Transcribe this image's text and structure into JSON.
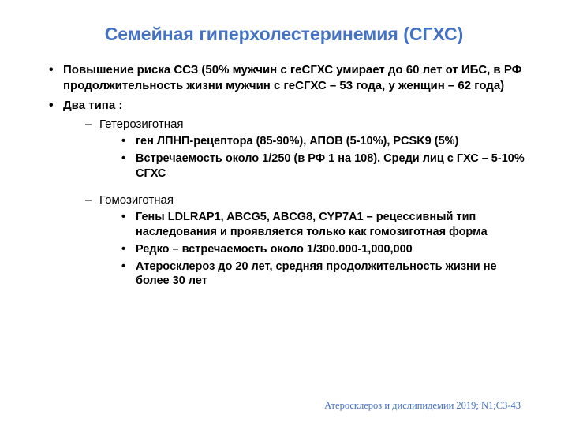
{
  "title": "Семейная гиперхолестеринемия (CГХС)",
  "bullets": {
    "risk": "Повышение риска ССЗ (50% мужчин с геСГХС умирает до 60 лет от ИБС, в РФ продолжительность жизни мужчин с геСГХС – 53 года, у женщин – 62 года)",
    "twoTypes": "Два типа :",
    "hetero": "Гетерозиготная",
    "heteroGene": "ген ЛПНП-рецептора (85-90%), АПОВ (5-10%), PCSK9 (5%)",
    "heteroFreq": "Встречаемость около  1/250 (в РФ 1 на 108). Среди лиц с ГХС – 5-10% СГХС",
    "homo": "Гомозиготная",
    "homoGene": "Гены LDLRAP1, ABCG5, ABCG8, CYP7A1 – рецессивный тип наследования и проявляется только как гомозиготная форма",
    "homoFreq": "Редко – встречаемость около 1/300.000-1,000,000",
    "homoAthero": "Атеросклероз до 20 лет, средняя продолжительность жизни не более 30 лет"
  },
  "citation": "Атеросклероз и дислипидемии 2019; N1;С3-43"
}
